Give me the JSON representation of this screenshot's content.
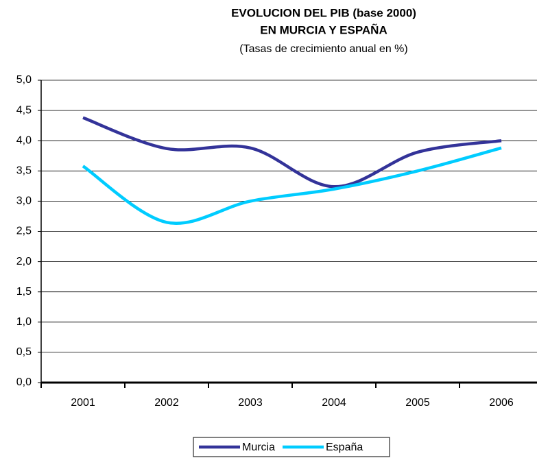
{
  "chart_data": {
    "type": "line",
    "title": [
      "EVOLUCION DEL PIB (base 2000)",
      "EN MURCIA Y ESPAÑA"
    ],
    "subtitle": "(Tasas de crecimiento anual en %)",
    "categories": [
      "2001",
      "2002",
      "2003",
      "2004",
      "2005",
      "2006"
    ],
    "series": [
      {
        "name": "Murcia",
        "color": "#333399",
        "values": [
          4.38,
          3.87,
          3.88,
          3.24,
          3.81,
          4.0
        ]
      },
      {
        "name": "España",
        "color": "#00ccff",
        "values": [
          3.58,
          2.65,
          3.0,
          3.2,
          3.5,
          3.88
        ]
      }
    ],
    "ylim": [
      0,
      5
    ],
    "yticks": [
      {
        "value": 0,
        "label": "0,0"
      },
      {
        "value": 0.5,
        "label": "0,5"
      },
      {
        "value": 1,
        "label": "1,0"
      },
      {
        "value": 1.5,
        "label": "1,5"
      },
      {
        "value": 2,
        "label": "2,0"
      },
      {
        "value": 2.5,
        "label": "2,5"
      },
      {
        "value": 3,
        "label": "3,0"
      },
      {
        "value": 3.5,
        "label": "3,5"
      },
      {
        "value": 4,
        "label": "4,0"
      },
      {
        "value": 4.5,
        "label": "4,5"
      },
      {
        "value": 5,
        "label": "5,0"
      }
    ],
    "grid": true,
    "legend": "bottom"
  }
}
